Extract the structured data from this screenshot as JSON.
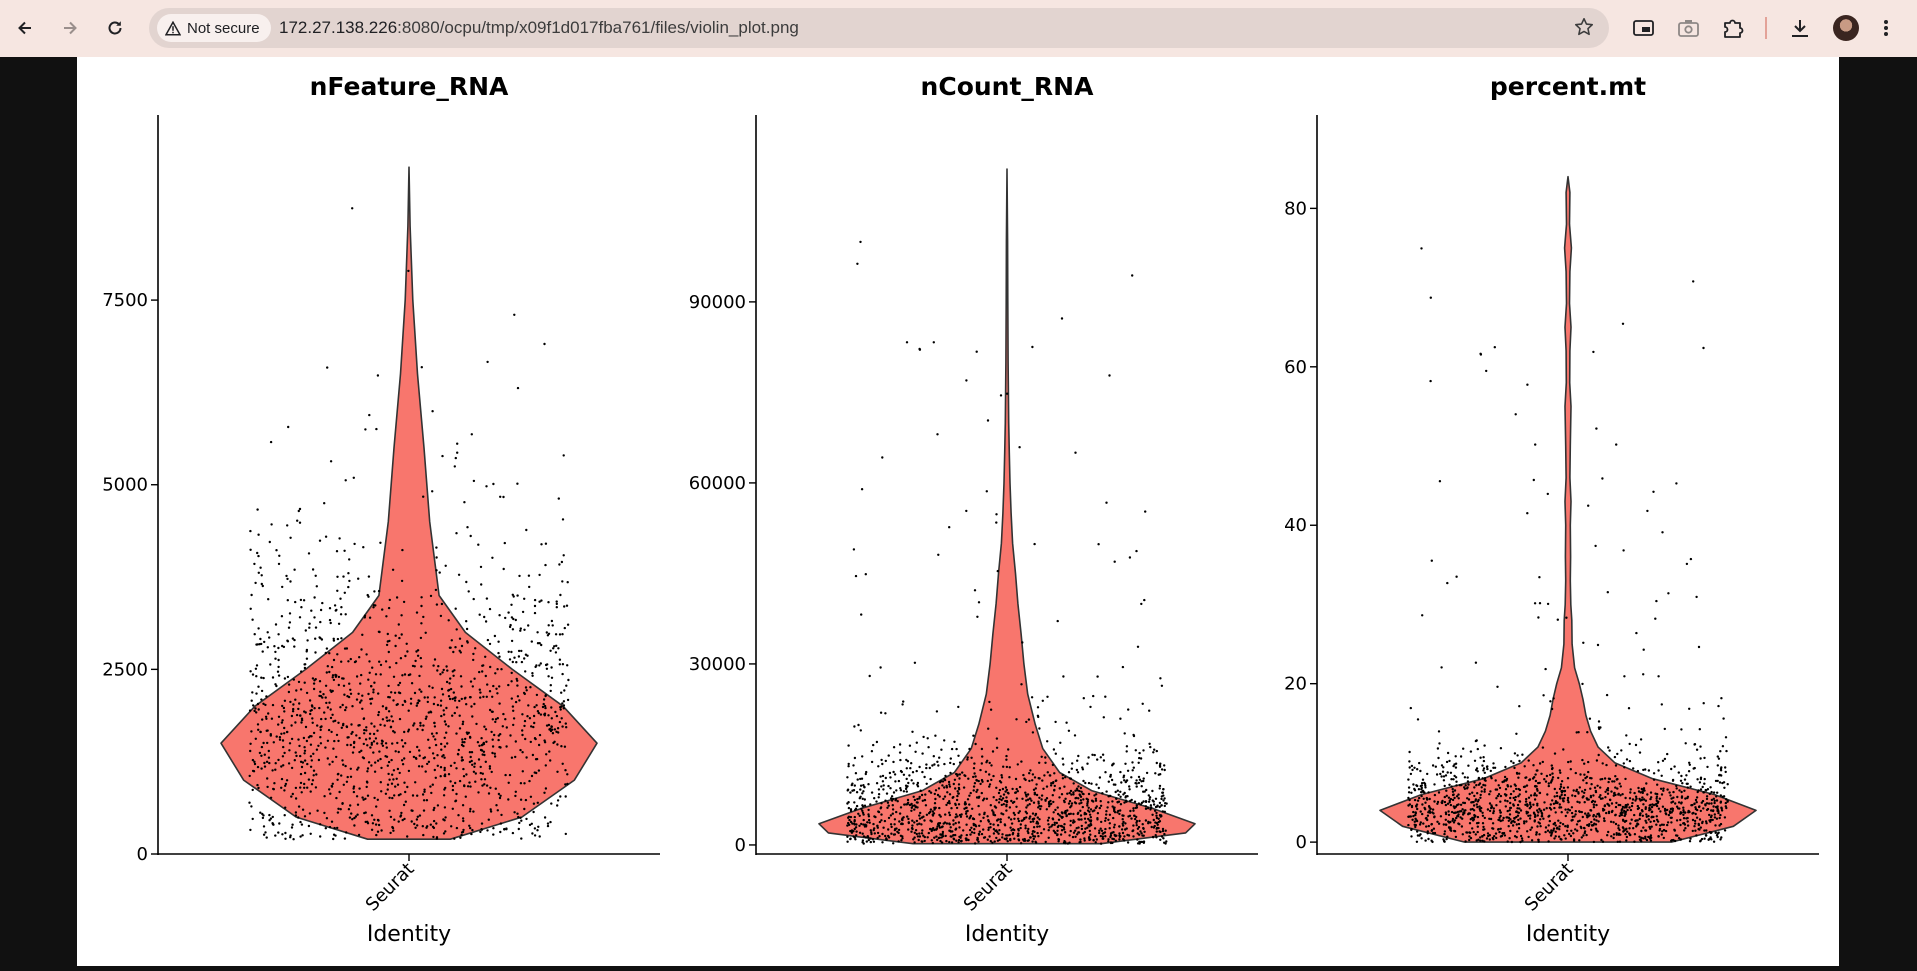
{
  "browser": {
    "security_label": "Not secure",
    "url_host": "172.27.138.226",
    "url_rest": ":8080/ocpu/tmp/x09f1d017fba761/files/violin_plot.png",
    "icons": [
      "back-arrow-icon",
      "forward-arrow-icon",
      "reload-icon",
      "warning-icon",
      "star-icon",
      "picture-in-picture-icon",
      "camera-icon",
      "extensions-icon",
      "download-icon",
      "avatar",
      "more-vert-icon"
    ]
  },
  "colors": {
    "violin_fill": "#F8766D",
    "violin_stroke": "#333333",
    "toolbar_bg": "#f6e6e1",
    "page_bg": "#111111"
  },
  "chart_data": [
    {
      "type": "violin",
      "title": "nFeature_RNA",
      "xlabel": "Identity",
      "category": "Seurat",
      "y_ticks": [
        0,
        2500,
        5000,
        7500
      ],
      "ylim": [
        0,
        9600
      ],
      "min": 200,
      "max": 9300,
      "density": [
        [
          200,
          0.22
        ],
        [
          500,
          0.6
        ],
        [
          1000,
          0.88
        ],
        [
          1500,
          1.0
        ],
        [
          2000,
          0.82
        ],
        [
          2500,
          0.55
        ],
        [
          3000,
          0.3
        ],
        [
          3500,
          0.16
        ],
        [
          4500,
          0.11
        ],
        [
          5500,
          0.08
        ],
        [
          6500,
          0.045
        ],
        [
          7500,
          0.02
        ],
        [
          8500,
          0.006
        ],
        [
          9300,
          0.0
        ]
      ],
      "points": {
        "n": 1500,
        "median": 1800,
        "spread": 1700,
        "max": 9300
      }
    },
    {
      "type": "violin",
      "title": "nCount_RNA",
      "xlabel": "Identity",
      "category": "Seurat",
      "y_ticks": [
        0,
        30000,
        60000,
        90000
      ],
      "ylim": [
        -1500,
        116000
      ],
      "min": 200,
      "max": 112000,
      "density": [
        [
          200,
          0.5
        ],
        [
          2000,
          0.95
        ],
        [
          3500,
          1.0
        ],
        [
          6000,
          0.78
        ],
        [
          9000,
          0.45
        ],
        [
          12000,
          0.28
        ],
        [
          16000,
          0.19
        ],
        [
          20000,
          0.15
        ],
        [
          25000,
          0.11
        ],
        [
          30000,
          0.09
        ],
        [
          35000,
          0.075
        ],
        [
          40000,
          0.058
        ],
        [
          45000,
          0.045
        ],
        [
          50000,
          0.03
        ],
        [
          55000,
          0.022
        ],
        [
          60000,
          0.016
        ],
        [
          65000,
          0.012
        ],
        [
          70000,
          0.009
        ],
        [
          80000,
          0.006
        ],
        [
          90000,
          0.004
        ],
        [
          100000,
          0.003
        ],
        [
          112000,
          0.0
        ]
      ],
      "points": {
        "n": 1500,
        "median": 5500,
        "spread": 9000,
        "max": 112000
      }
    },
    {
      "type": "violin",
      "title": "percent.mt",
      "xlabel": "Identity",
      "category": "Seurat",
      "y_ticks": [
        0,
        20,
        40,
        60,
        80
      ],
      "ylim": [
        -1.5,
        88
      ],
      "min": 0,
      "max": 84,
      "density": [
        [
          0,
          0.55
        ],
        [
          2,
          0.88
        ],
        [
          4,
          1.0
        ],
        [
          6,
          0.78
        ],
        [
          8,
          0.45
        ],
        [
          10,
          0.25
        ],
        [
          12,
          0.16
        ],
        [
          14,
          0.12
        ],
        [
          16,
          0.095
        ],
        [
          18,
          0.08
        ],
        [
          20,
          0.06
        ],
        [
          22,
          0.035
        ],
        [
          25,
          0.022
        ],
        [
          28,
          0.02
        ],
        [
          30,
          0.015
        ],
        [
          33,
          0.012
        ],
        [
          36,
          0.014
        ],
        [
          40,
          0.012
        ],
        [
          43,
          0.016
        ],
        [
          46,
          0.01
        ],
        [
          50,
          0.012
        ],
        [
          55,
          0.016
        ],
        [
          58,
          0.009
        ],
        [
          62,
          0.01
        ],
        [
          65,
          0.016
        ],
        [
          68,
          0.008
        ],
        [
          72,
          0.01
        ],
        [
          75,
          0.018
        ],
        [
          78,
          0.008
        ],
        [
          82,
          0.01
        ],
        [
          84,
          0.0
        ]
      ],
      "points": {
        "n": 1500,
        "median": 4.5,
        "spread": 5.5,
        "max": 84
      }
    }
  ]
}
